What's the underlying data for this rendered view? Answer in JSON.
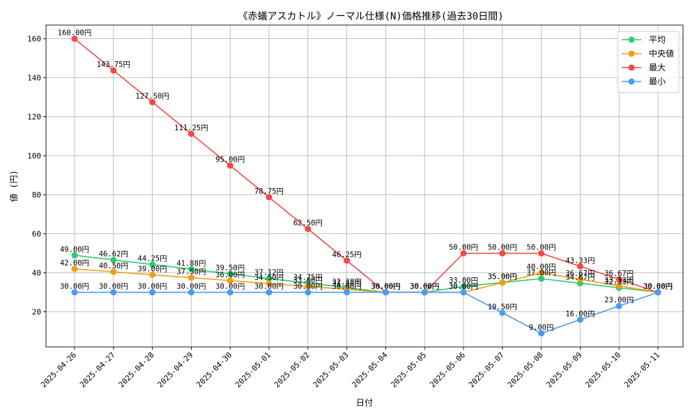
{
  "chart_data": {
    "type": "line",
    "title": "《赤蟻アスカトル》ノーマル仕様(N)価格推移(過去30日間)",
    "xlabel": "日付",
    "ylabel": "値 (円)",
    "categories": [
      "2025-04-26",
      "2025-04-27",
      "2025-04-28",
      "2025-04-29",
      "2025-04-30",
      "2025-05-01",
      "2025-05-02",
      "2025-05-03",
      "2025-05-04",
      "2025-05-05",
      "2025-05-06",
      "2025-05-07",
      "2025-05-08",
      "2025-05-09",
      "2025-05-10",
      "2025-05-11"
    ],
    "ylim": [
      2,
      167
    ],
    "yticks": [
      20,
      40,
      60,
      80,
      100,
      120,
      140,
      160
    ],
    "grid": true,
    "legend_position": "top-right",
    "label_suffix": "円",
    "series": [
      {
        "name": "平均",
        "color": "#2ecc71",
        "values": [
          49.0,
          46.62,
          44.25,
          41.88,
          39.5,
          37.12,
          34.75,
          32.38,
          30.0,
          30.0,
          33.0,
          35.0,
          37.0,
          34.67,
          32.33,
          30.0
        ]
      },
      {
        "name": "中央値",
        "color": "#f39c12",
        "values": [
          42.0,
          40.5,
          39.0,
          37.5,
          36.0,
          34.5,
          33.0,
          31.5,
          30.0,
          30.0,
          30.0,
          35.0,
          40.0,
          36.67,
          33.33,
          30.0
        ]
      },
      {
        "name": "最大",
        "color": "#f04a4a",
        "values": [
          160.0,
          143.75,
          127.5,
          111.25,
          95.0,
          78.75,
          62.5,
          46.25,
          30.0,
          30.0,
          50.0,
          50.0,
          50.0,
          43.33,
          36.67,
          30.0
        ]
      },
      {
        "name": "最小",
        "color": "#4a9af5",
        "values": [
          30.0,
          30.0,
          30.0,
          30.0,
          30.0,
          30.0,
          30.0,
          30.0,
          30.0,
          30.0,
          30.0,
          19.5,
          9.0,
          16.0,
          23.0,
          30.0
        ]
      }
    ]
  }
}
